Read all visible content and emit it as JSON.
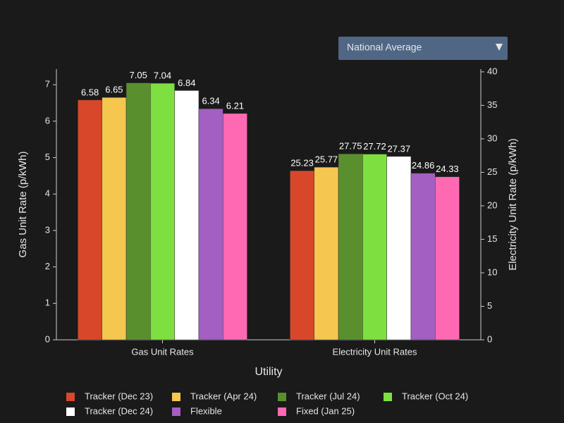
{
  "controls": {
    "region_select": "National Average"
  },
  "chart_data": {
    "type": "bar",
    "x_label": "Utility",
    "y_label": "Gas Unit Rate (p/kWh)",
    "y2_label": "Electricity Unit Rate (p/kWh)",
    "categories": [
      "Gas Unit Rates",
      "Electricity Unit Rates"
    ],
    "category_axes": [
      "y",
      "y2"
    ],
    "series": [
      {
        "name": "Tracker (Dec 23)",
        "color": "#d9472b",
        "values": [
          6.58,
          25.23
        ]
      },
      {
        "name": "Tracker (Apr 24)",
        "color": "#f5c74e",
        "values": [
          6.65,
          25.77
        ]
      },
      {
        "name": "Tracker (Jul 24)",
        "color": "#5a8f2e",
        "values": [
          7.05,
          27.75
        ]
      },
      {
        "name": "Tracker (Oct 24)",
        "color": "#7ee040",
        "values": [
          7.04,
          27.72
        ]
      },
      {
        "name": "Tracker (Dec 24)",
        "color": "#ffffff",
        "values": [
          6.84,
          27.37
        ]
      },
      {
        "name": "Flexible",
        "color": "#a35fc1",
        "values": [
          6.34,
          24.86
        ]
      },
      {
        "name": "Fixed (Jan 25)",
        "color": "#ff69b4",
        "values": [
          6.21,
          24.33
        ]
      }
    ],
    "ylim": [
      0,
      7.39
    ],
    "yticks": [
      0,
      1,
      2,
      3,
      4,
      5,
      6,
      7
    ],
    "y2lim": [
      0,
      40.2
    ],
    "y2ticks": [
      0,
      5,
      10,
      15,
      20,
      25,
      30,
      35,
      40
    ],
    "legend": "bottom"
  }
}
